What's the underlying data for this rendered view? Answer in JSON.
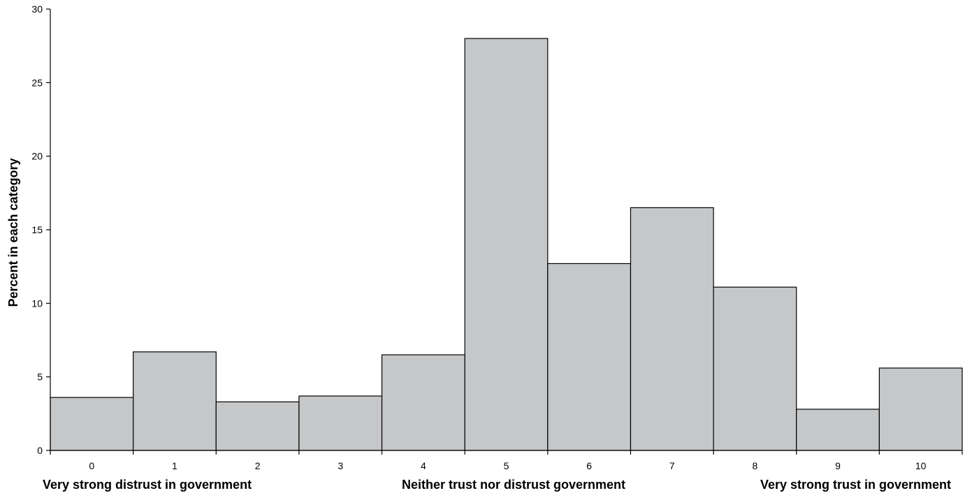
{
  "chart_data": {
    "type": "bar",
    "title": "",
    "xlabel": "",
    "ylabel": "Percent in each category",
    "ylim": [
      0,
      30
    ],
    "yticks": [
      0,
      5,
      10,
      15,
      20,
      25,
      30
    ],
    "grid": false,
    "legend": "none",
    "bar_color": "#c6c7c9",
    "edge_color": "#000000",
    "categories": [
      "0",
      "1",
      "2",
      "3",
      "4",
      "5",
      "6",
      "7",
      "8",
      "9",
      "10"
    ],
    "values": [
      3.6,
      6.7,
      3.3,
      3.7,
      6.5,
      28.0,
      12.7,
      16.5,
      11.1,
      2.8,
      5.6
    ],
    "scale_labels": {
      "left": "Very strong distrust in government",
      "middle": "Neither trust nor distrust government",
      "right": "Very strong trust in government"
    }
  }
}
